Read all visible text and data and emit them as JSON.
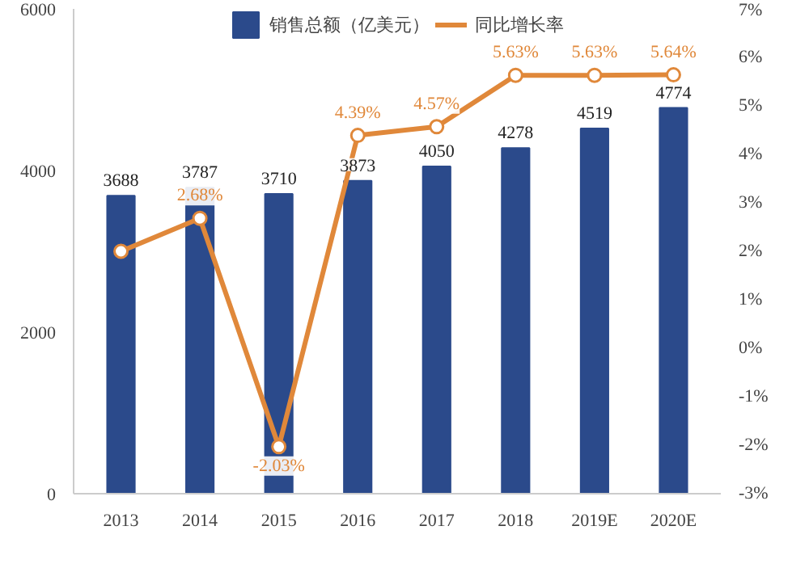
{
  "chart_data": {
    "type": "bar",
    "categories": [
      "2013",
      "2014",
      "2015",
      "2016",
      "2017",
      "2018",
      "2019E",
      "2020E"
    ],
    "series": [
      {
        "name": "销售总额（亿美元）",
        "color": "#2b4a8b",
        "values": [
          3688,
          3787,
          3710,
          3873,
          4050,
          4278,
          4519,
          4774
        ],
        "value_labels": [
          "3688",
          "3787",
          "3710",
          "3873",
          "4050",
          "4278",
          "4519",
          "4774"
        ]
      },
      {
        "name": "同比增长率",
        "type": "line",
        "axis": "y2",
        "color": "#e0883a",
        "marker": "circle",
        "values": [
          2.0,
          2.68,
          -2.03,
          4.39,
          4.57,
          5.63,
          5.63,
          5.64
        ],
        "value_labels": [
          null,
          "2.68%",
          "-2.03%",
          "4.39%",
          "4.57%",
          "5.63%",
          "5.63%",
          "5.64%"
        ]
      }
    ],
    "ylim": [
      0,
      6000
    ],
    "yticks": [
      0,
      2000,
      4000,
      6000
    ],
    "y2lim": [
      -3,
      7
    ],
    "y2ticks": [
      {
        "value": -3,
        "label": "-3%"
      },
      {
        "value": -2,
        "label": "-2%"
      },
      {
        "value": -1,
        "label": "-1%"
      },
      {
        "value": 0,
        "label": "0%"
      },
      {
        "value": 1,
        "label": "1%"
      },
      {
        "value": 2,
        "label": "2%"
      },
      {
        "value": 3,
        "label": "3%"
      },
      {
        "value": 4,
        "label": "4%"
      },
      {
        "value": 5,
        "label": "5%"
      },
      {
        "value": 6,
        "label": "6%"
      },
      {
        "value": 7,
        "label": "7%"
      }
    ],
    "grid": false,
    "legend": "top"
  }
}
